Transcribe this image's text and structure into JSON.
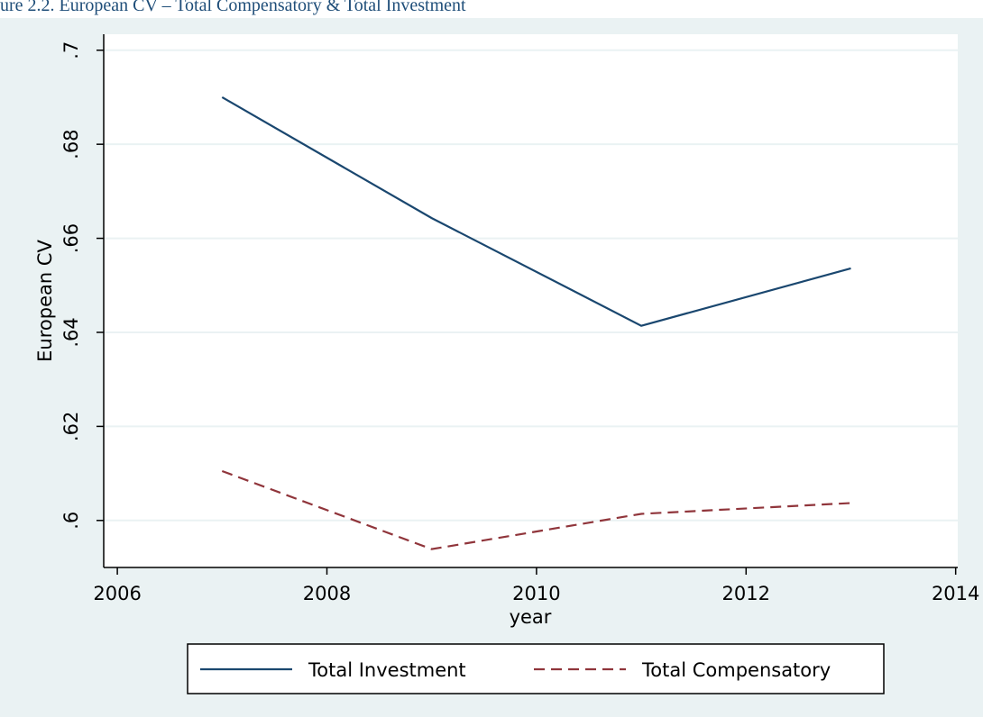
{
  "caption": "ure 2.2. European CV – Total Compensatory & Total Investment",
  "chart_data": {
    "type": "line",
    "x_label": "year",
    "y_label": "European CV",
    "x": [
      2007,
      2009,
      2011,
      2013
    ],
    "series": [
      {
        "name": "Total Investment",
        "color": "#1a476f",
        "dash": "solid",
        "values": [
          0.69,
          0.6643,
          0.6414,
          0.6536
        ]
      },
      {
        "name": "Total Compensatory",
        "color": "#90353b",
        "dash": "dashed",
        "values": [
          0.6105,
          0.5939,
          0.6014,
          0.6037
        ]
      }
    ],
    "xlim": [
      2005.87,
      2014.02
    ],
    "xticks": [
      2006,
      2008,
      2010,
      2012,
      2014
    ],
    "ylim": [
      0.59,
      0.7034
    ],
    "yticks": [
      {
        "value": 0.6,
        "label": ".6"
      },
      {
        "value": 0.62,
        "label": ".62"
      },
      {
        "value": 0.64,
        "label": ".64"
      },
      {
        "value": 0.66,
        "label": ".66"
      },
      {
        "value": 0.68,
        "label": ".68"
      },
      {
        "value": 0.7,
        "label": ".7"
      }
    ],
    "grid": true,
    "legend": "bottom"
  }
}
